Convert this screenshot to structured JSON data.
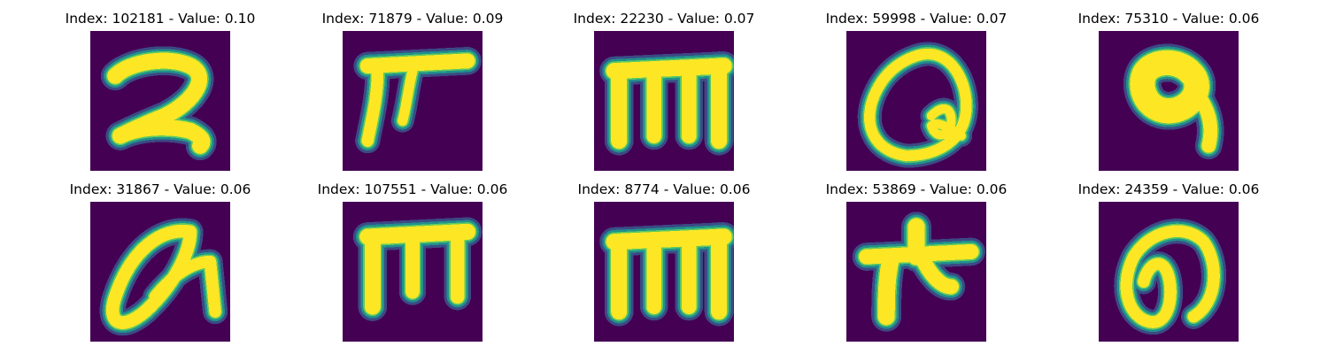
{
  "colors": {
    "background": "#440154",
    "stroke_core": "#fde725",
    "stroke_mid": "#5ec962",
    "stroke_edge": "#21918c",
    "stroke_faint": "#3b528b"
  },
  "panels": [
    {
      "title": "Index: 102181 - Value: 0.10",
      "glyph": "glyph-two"
    },
    {
      "title": "Index: 71879 - Value: 0.09",
      "glyph": "glyph-t-bar"
    },
    {
      "title": "Index: 22230 - Value: 0.07",
      "glyph": "glyph-m"
    },
    {
      "title": "Index: 59998 - Value: 0.07",
      "glyph": "glyph-loop-q"
    },
    {
      "title": "Index: 75310 - Value: 0.06",
      "glyph": "glyph-blob-nine"
    },
    {
      "title": "Index: 31867 - Value: 0.06",
      "glyph": "glyph-slanted-a"
    },
    {
      "title": "Index: 107551 - Value: 0.06",
      "glyph": "glyph-comb"
    },
    {
      "title": "Index: 8774 - Value: 0.06",
      "glyph": "glyph-m"
    },
    {
      "title": "Index: 53869 - Value: 0.06",
      "glyph": "glyph-star"
    },
    {
      "title": "Index: 24359 - Value: 0.06",
      "glyph": "glyph-oval-loop"
    }
  ]
}
